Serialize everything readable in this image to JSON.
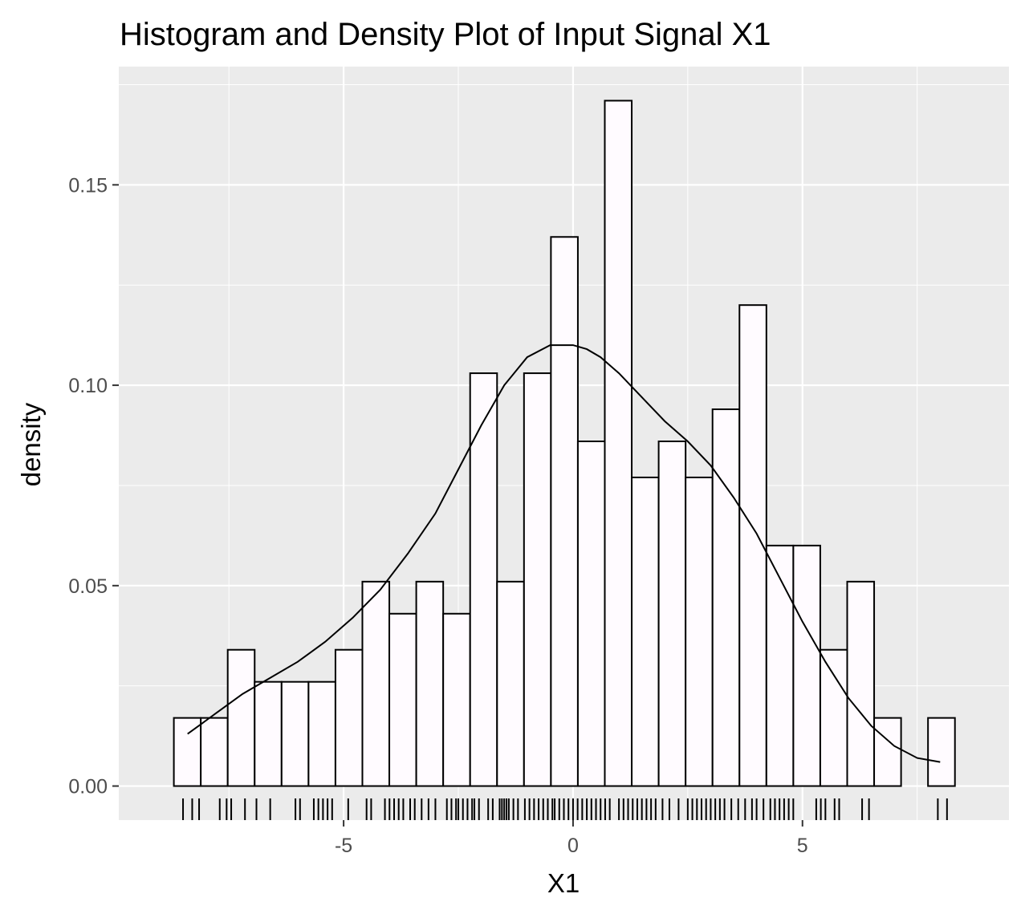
{
  "chart_data": {
    "type": "bar",
    "title": "Histogram and Density Plot of Input Signal X1",
    "xlabel": "X1",
    "ylabel": "density",
    "xlim": [
      -9.9,
      9.5
    ],
    "ylim": [
      -0.0085,
      0.1795
    ],
    "x_ticks": [
      -5,
      0,
      5
    ],
    "x_tick_labels": [
      "-5",
      "0",
      "5"
    ],
    "y_ticks": [
      0.0,
      0.05,
      0.1,
      0.15
    ],
    "y_tick_labels": [
      "0.00",
      "0.05",
      "0.10",
      "0.15"
    ],
    "grid": true,
    "bins": {
      "start": -8.7,
      "width": 0.587,
      "density": [
        0.017,
        0.017,
        0.034,
        0.026,
        0.026,
        0.026,
        0.034,
        0.051,
        0.043,
        0.051,
        0.043,
        0.103,
        0.051,
        0.103,
        0.137,
        0.086,
        0.171,
        0.077,
        0.086,
        0.077,
        0.094,
        0.12,
        0.06,
        0.06,
        0.034,
        0.051,
        0.017,
        0,
        0.017
      ]
    },
    "density_curve": {
      "x": [
        -8.4,
        -7.8,
        -7.2,
        -6.6,
        -6.0,
        -5.4,
        -4.8,
        -4.2,
        -3.6,
        -3.0,
        -2.5,
        -2.0,
        -1.5,
        -1.0,
        -0.5,
        0.0,
        0.3,
        0.6,
        1.0,
        1.5,
        2.0,
        2.5,
        3.0,
        3.5,
        4.0,
        4.5,
        5.0,
        5.5,
        6.0,
        6.5,
        7.0,
        7.5,
        8.0
      ],
      "y": [
        0.013,
        0.018,
        0.023,
        0.027,
        0.031,
        0.036,
        0.042,
        0.049,
        0.058,
        0.068,
        0.079,
        0.09,
        0.1,
        0.107,
        0.11,
        0.11,
        0.109,
        0.107,
        0.103,
        0.097,
        0.091,
        0.086,
        0.08,
        0.072,
        0.063,
        0.052,
        0.041,
        0.031,
        0.022,
        0.015,
        0.01,
        0.007,
        0.006
      ]
    },
    "rug_x": [
      -8.5,
      -8.3,
      -8.15,
      -7.7,
      -7.55,
      -7.45,
      -7.15,
      -6.9,
      -6.6,
      -6.05,
      -5.95,
      -5.65,
      -5.55,
      -5.45,
      -5.35,
      -5.25,
      -4.9,
      -4.5,
      -4.4,
      -4.1,
      -4.0,
      -3.9,
      -3.8,
      -3.7,
      -3.55,
      -3.45,
      -3.3,
      -3.15,
      -3.0,
      -2.75,
      -2.65,
      -2.55,
      -2.5,
      -2.4,
      -2.3,
      -2.2,
      -2.15,
      -2.05,
      -1.85,
      -1.75,
      -1.6,
      -1.55,
      -1.5,
      -1.45,
      -1.4,
      -1.3,
      -1.2,
      -1.05,
      -0.95,
      -0.85,
      -0.75,
      -0.65,
      -0.55,
      -0.45,
      -0.4,
      -0.3,
      -0.2,
      -0.1,
      0.0,
      0.1,
      0.2,
      0.3,
      0.4,
      0.5,
      0.6,
      0.7,
      0.8,
      1.0,
      1.1,
      1.2,
      1.3,
      1.4,
      1.5,
      1.6,
      1.7,
      1.8,
      1.95,
      2.1,
      2.3,
      2.5,
      2.6,
      2.7,
      2.8,
      2.9,
      3.0,
      3.1,
      3.2,
      3.3,
      3.45,
      3.6,
      3.75,
      3.9,
      4.0,
      4.15,
      4.3,
      4.4,
      4.5,
      4.6,
      4.7,
      4.8,
      5.3,
      5.4,
      5.5,
      5.7,
      5.8,
      6.3,
      6.45,
      7.95,
      8.15
    ]
  }
}
